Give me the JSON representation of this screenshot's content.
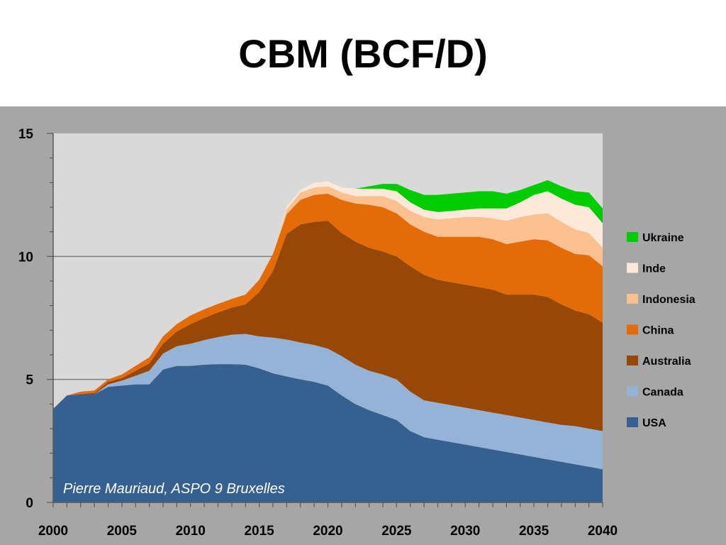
{
  "slide": {
    "title": "CBM (BCF/D)"
  },
  "chart_data": {
    "type": "area",
    "stacked": true,
    "title": "",
    "xlabel": "",
    "ylabel": "",
    "xlim": [
      2000,
      2040
    ],
    "ylim": [
      0,
      15
    ],
    "x_ticks": [
      2000,
      2005,
      2010,
      2015,
      2020,
      2025,
      2030,
      2035,
      2040
    ],
    "y_ticks": [
      0,
      5,
      10,
      15
    ],
    "gridlines_y": [
      5,
      10
    ],
    "legend_position": "right",
    "annotation": "Pierre Mauriaud, ASPO 9 Bruxelles",
    "x": [
      2000,
      2001,
      2002,
      2003,
      2004,
      2005,
      2006,
      2007,
      2008,
      2009,
      2010,
      2011,
      2012,
      2013,
      2014,
      2015,
      2016,
      2017,
      2018,
      2019,
      2020,
      2021,
      2022,
      2023,
      2024,
      2025,
      2026,
      2027,
      2028,
      2029,
      2030,
      2031,
      2032,
      2033,
      2034,
      2035,
      2036,
      2037,
      2038,
      2039,
      2040
    ],
    "series": [
      {
        "name": "USA",
        "color": "#36608f",
        "values": [
          3.8,
          4.35,
          4.4,
          4.4,
          4.7,
          4.75,
          4.8,
          4.8,
          5.4,
          5.55,
          5.55,
          5.6,
          5.62,
          5.62,
          5.6,
          5.45,
          5.25,
          5.12,
          5.0,
          4.9,
          4.75,
          4.35,
          4.0,
          3.75,
          3.55,
          3.35,
          2.9,
          2.65,
          2.55,
          2.45,
          2.35,
          2.25,
          2.15,
          2.05,
          1.95,
          1.85,
          1.75,
          1.65,
          1.55,
          1.45,
          1.35
        ]
      },
      {
        "name": "Canada",
        "color": "#95b3d7",
        "values": [
          0,
          0,
          0,
          0,
          0.1,
          0.2,
          0.35,
          0.55,
          0.65,
          0.8,
          0.9,
          1.0,
          1.1,
          1.2,
          1.25,
          1.3,
          1.45,
          1.5,
          1.5,
          1.5,
          1.5,
          1.6,
          1.6,
          1.6,
          1.65,
          1.65,
          1.6,
          1.5,
          1.5,
          1.5,
          1.5,
          1.5,
          1.5,
          1.5,
          1.5,
          1.5,
          1.5,
          1.5,
          1.55,
          1.55,
          1.55
        ]
      },
      {
        "name": "Australia",
        "color": "#974806",
        "values": [
          0,
          0,
          0,
          0.05,
          0.1,
          0.1,
          0.2,
          0.3,
          0.4,
          0.6,
          0.8,
          0.9,
          1.0,
          1.1,
          1.2,
          1.8,
          2.7,
          4.3,
          4.8,
          5.0,
          5.2,
          5.0,
          5.0,
          5.0,
          5.0,
          5.0,
          5.1,
          5.1,
          5.0,
          5.0,
          5.0,
          5.0,
          5.0,
          4.9,
          5.0,
          5.1,
          5.1,
          4.9,
          4.7,
          4.65,
          4.4
        ]
      },
      {
        "name": "China",
        "color": "#e36c09",
        "values": [
          0,
          0,
          0.1,
          0.1,
          0.1,
          0.15,
          0.2,
          0.25,
          0.3,
          0.3,
          0.35,
          0.35,
          0.35,
          0.35,
          0.4,
          0.5,
          0.7,
          0.8,
          1.0,
          1.1,
          1.1,
          1.35,
          1.55,
          1.75,
          1.8,
          1.75,
          1.7,
          1.75,
          1.75,
          1.85,
          1.95,
          2.05,
          2.05,
          2.05,
          2.15,
          2.25,
          2.3,
          2.3,
          2.3,
          2.4,
          2.3
        ]
      },
      {
        "name": "Indonesia",
        "color": "#fac090",
        "values": [
          0,
          0,
          0,
          0,
          0,
          0,
          0,
          0,
          0,
          0,
          0,
          0,
          0,
          0,
          0,
          0,
          0,
          0.2,
          0.3,
          0.3,
          0.3,
          0.3,
          0.3,
          0.35,
          0.45,
          0.5,
          0.55,
          0.6,
          0.7,
          0.75,
          0.8,
          0.8,
          0.85,
          0.95,
          1.0,
          1.0,
          1.1,
          1.05,
          1.0,
          0.9,
          0.75
        ]
      },
      {
        "name": "Inde",
        "color": "#fde9d9",
        "values": [
          0,
          0,
          0,
          0,
          0,
          0,
          0,
          0,
          0,
          0,
          0,
          0,
          0,
          0,
          0,
          0,
          0,
          0.1,
          0.1,
          0.2,
          0.2,
          0.2,
          0.3,
          0.3,
          0.3,
          0.4,
          0.35,
          0.3,
          0.3,
          0.3,
          0.3,
          0.35,
          0.4,
          0.5,
          0.6,
          0.8,
          0.9,
          0.95,
          1.0,
          1.05,
          1.0
        ]
      },
      {
        "name": "Ukraine",
        "color": "#00cc00",
        "values": [
          0,
          0,
          0,
          0,
          0,
          0,
          0,
          0,
          0,
          0,
          0,
          0,
          0,
          0,
          0,
          0,
          0,
          0,
          0,
          0,
          0,
          0,
          0,
          0.1,
          0.2,
          0.3,
          0.5,
          0.6,
          0.7,
          0.7,
          0.7,
          0.7,
          0.7,
          0.6,
          0.5,
          0.4,
          0.45,
          0.5,
          0.55,
          0.6,
          0.6
        ]
      }
    ]
  }
}
